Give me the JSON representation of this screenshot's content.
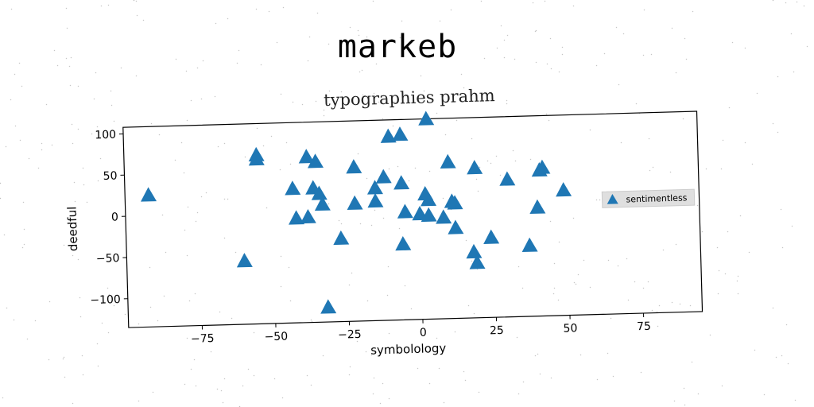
{
  "figure": {
    "suptitle": "markeb"
  },
  "chart_data": {
    "type": "scatter",
    "title": "typographies prahm",
    "xlabel": "symbolology",
    "ylabel": "deedful",
    "xlim": [
      -100,
      95
    ],
    "ylim": [
      -135,
      108
    ],
    "xticks": [
      -75,
      -50,
      -25,
      0,
      25,
      50,
      75
    ],
    "yticks": [
      -100,
      -50,
      0,
      50,
      100
    ],
    "xtick_labels": [
      "−75",
      "−50",
      "−25",
      "0",
      "25",
      "50",
      "75"
    ],
    "ytick_labels": [
      "−100",
      "−50",
      "0",
      "50",
      "100"
    ],
    "grid": false,
    "legend_position": "right",
    "marker": "triangle",
    "color": "#1f77b4",
    "series": [
      {
        "name": "sentimentless",
        "points": [
          [
            -92,
            25
          ],
          [
            -60,
            -58
          ],
          [
            -55,
            70
          ],
          [
            -55,
            65
          ],
          [
            -38,
            66
          ],
          [
            -35,
            60
          ],
          [
            -43,
            28
          ],
          [
            -36,
            28
          ],
          [
            -34,
            21
          ],
          [
            -33,
            8
          ],
          [
            -42,
            -8
          ],
          [
            -38,
            -7
          ],
          [
            -27,
            -34
          ],
          [
            -32,
            -117
          ],
          [
            -22,
            52
          ],
          [
            -22,
            8
          ],
          [
            -15,
            26
          ],
          [
            -15,
            10
          ],
          [
            -12,
            39
          ],
          [
            -10,
            88
          ],
          [
            -6,
            90
          ],
          [
            -6,
            31
          ],
          [
            -5,
            -4
          ],
          [
            -6,
            -43
          ],
          [
            0,
            -7
          ],
          [
            2,
            17
          ],
          [
            3,
            10
          ],
          [
            3,
            -9
          ],
          [
            3,
            108
          ],
          [
            8,
            -12
          ],
          [
            10,
            55
          ],
          [
            11,
            7
          ],
          [
            12,
            5
          ],
          [
            12,
            -25
          ],
          [
            18,
            -55
          ],
          [
            19,
            47
          ],
          [
            19,
            -68
          ],
          [
            24,
            -38
          ],
          [
            30,
            32
          ],
          [
            37,
            -49
          ],
          [
            40,
            -3
          ],
          [
            41,
            42
          ],
          [
            42,
            45
          ],
          [
            49,
            17
          ]
        ]
      }
    ]
  }
}
